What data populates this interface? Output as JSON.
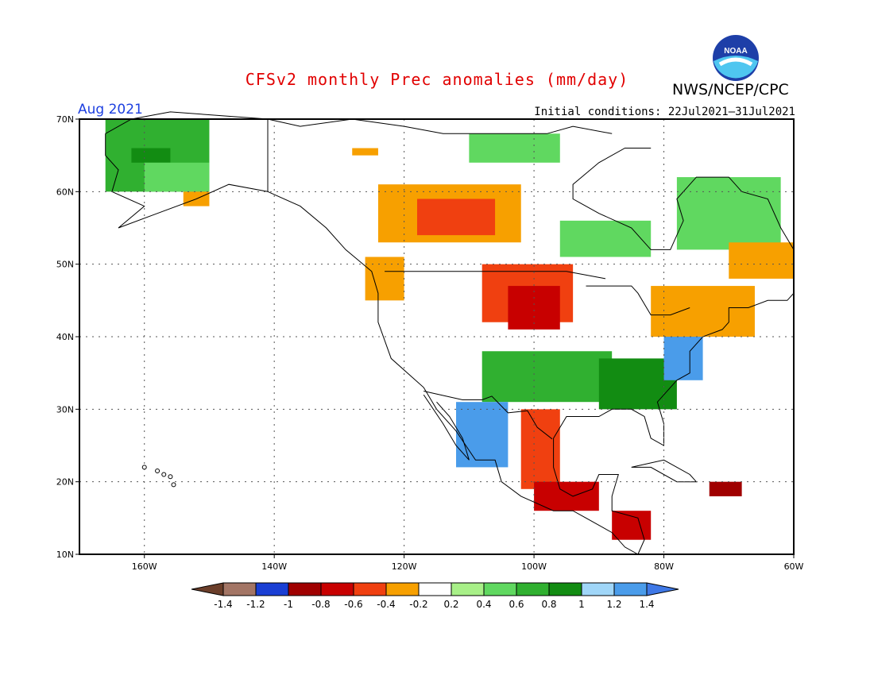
{
  "header": {
    "title": "CFSv2 monthly Prec anomalies (mm/day)",
    "agency": "NWS/NCEP/CPC",
    "month": "Aug 2021",
    "initial_conditions": "Initial conditions: 22Jul2021–31Jul2021",
    "logo_text": "NOAA"
  },
  "map": {
    "region": {
      "lon_min": -170,
      "lon_max": -60,
      "lat_min": 10,
      "lat_max": 70
    },
    "lat_ticks": [
      {
        "value": 70,
        "label": "70N"
      },
      {
        "value": 60,
        "label": "60N"
      },
      {
        "value": 50,
        "label": "50N"
      },
      {
        "value": 40,
        "label": "40N"
      },
      {
        "value": 30,
        "label": "30N"
      },
      {
        "value": 20,
        "label": "20N"
      },
      {
        "value": 10,
        "label": "10N"
      }
    ],
    "lon_ticks": [
      {
        "value": -160,
        "label": "160W"
      },
      {
        "value": -140,
        "label": "140W"
      },
      {
        "value": -120,
        "label": "120W"
      },
      {
        "value": -100,
        "label": "100W"
      },
      {
        "value": -80,
        "label": "80W"
      },
      {
        "value": -60,
        "label": "60W"
      }
    ],
    "grid": true,
    "anomaly_regions": [
      {
        "name": "alaska-north",
        "value": 0.6,
        "lon": [
          -166,
          -150
        ],
        "lat": [
          60,
          70
        ]
      },
      {
        "name": "alaska-core",
        "value": 0.8,
        "lon": [
          -162,
          -156
        ],
        "lat": [
          64,
          66
        ]
      },
      {
        "name": "alaska-south",
        "value": 0.4,
        "lon": [
          -160,
          -150
        ],
        "lat": [
          60,
          64
        ]
      },
      {
        "name": "alaska-coast-dry",
        "value": -0.4,
        "lon": [
          -154,
          -150
        ],
        "lat": [
          58,
          60
        ]
      },
      {
        "name": "canada-west-dry",
        "value": -0.4,
        "lon": [
          -124,
          -102
        ],
        "lat": [
          53,
          61
        ]
      },
      {
        "name": "canada-west-core",
        "value": -0.6,
        "lon": [
          -118,
          -106
        ],
        "lat": [
          54,
          59
        ]
      },
      {
        "name": "canada-north-dry",
        "value": -0.4,
        "lon": [
          -128,
          -124
        ],
        "lat": [
          65,
          66
        ]
      },
      {
        "name": "canada-arctic-wet",
        "value": 0.4,
        "lon": [
          -110,
          -96
        ],
        "lat": [
          64,
          68
        ]
      },
      {
        "name": "hudson-wet",
        "value": 0.4,
        "lon": [
          -96,
          -82
        ],
        "lat": [
          51,
          56
        ]
      },
      {
        "name": "quebec-wet",
        "value": 0.4,
        "lon": [
          -78,
          -62
        ],
        "lat": [
          52,
          62
        ]
      },
      {
        "name": "labrador-dry",
        "value": -0.4,
        "lon": [
          -70,
          -60
        ],
        "lat": [
          48,
          53
        ]
      },
      {
        "name": "pacific-nw-dry",
        "value": -0.4,
        "lon": [
          -126,
          -120
        ],
        "lat": [
          45,
          51
        ]
      },
      {
        "name": "plains-north-dry",
        "value": -0.6,
        "lon": [
          -108,
          -94
        ],
        "lat": [
          42,
          50
        ]
      },
      {
        "name": "plains-core",
        "value": -0.8,
        "lon": [
          -104,
          -96
        ],
        "lat": [
          41,
          47
        ]
      },
      {
        "name": "northeast-dry",
        "value": -0.4,
        "lon": [
          -82,
          -66
        ],
        "lat": [
          40,
          47
        ]
      },
      {
        "name": "south-central-wet",
        "value": 0.6,
        "lon": [
          -108,
          -88
        ],
        "lat": [
          31,
          38
        ]
      },
      {
        "name": "southeast-wet",
        "value": 0.8,
        "lon": [
          -90,
          -78
        ],
        "lat": [
          30,
          37
        ]
      },
      {
        "name": "east-coast-wet",
        "value": 1.2,
        "lon": [
          -80,
          -74
        ],
        "lat": [
          34,
          40
        ]
      },
      {
        "name": "mexico-west-wet",
        "value": 1.2,
        "lon": [
          -112,
          -104
        ],
        "lat": [
          22,
          31
        ]
      },
      {
        "name": "mexico-east-dry",
        "value": -0.6,
        "lon": [
          -102,
          -96
        ],
        "lat": [
          19,
          30
        ]
      },
      {
        "name": "mexico-south-dry",
        "value": -0.8,
        "lon": [
          -100,
          -90
        ],
        "lat": [
          16,
          20
        ]
      },
      {
        "name": "central-america-dry",
        "value": -0.8,
        "lon": [
          -88,
          -82
        ],
        "lat": [
          12,
          16
        ]
      },
      {
        "name": "caribbean-dry",
        "value": -1.0,
        "lon": [
          -73,
          -68
        ],
        "lat": [
          18,
          20
        ]
      }
    ]
  },
  "colorbar": {
    "labels": [
      "-1.4",
      "-1.2",
      "-1",
      "-0.8",
      "-0.6",
      "-0.4",
      "-0.2",
      "0.2",
      "0.4",
      "0.6",
      "0.8",
      "1",
      "1.2",
      "1.4"
    ],
    "colors": [
      "#a37565",
      "#1a3fd4",
      "#a00000",
      "#c80000",
      "#f04010",
      "#f7a000",
      "#ffffff",
      "#a8f088",
      "#60d860",
      "#30b030",
      "#128c12",
      "#a0d6f8",
      "#4a9cea"
    ],
    "low_color": "#6b3e2a",
    "high_color": "#3f78e6"
  }
}
